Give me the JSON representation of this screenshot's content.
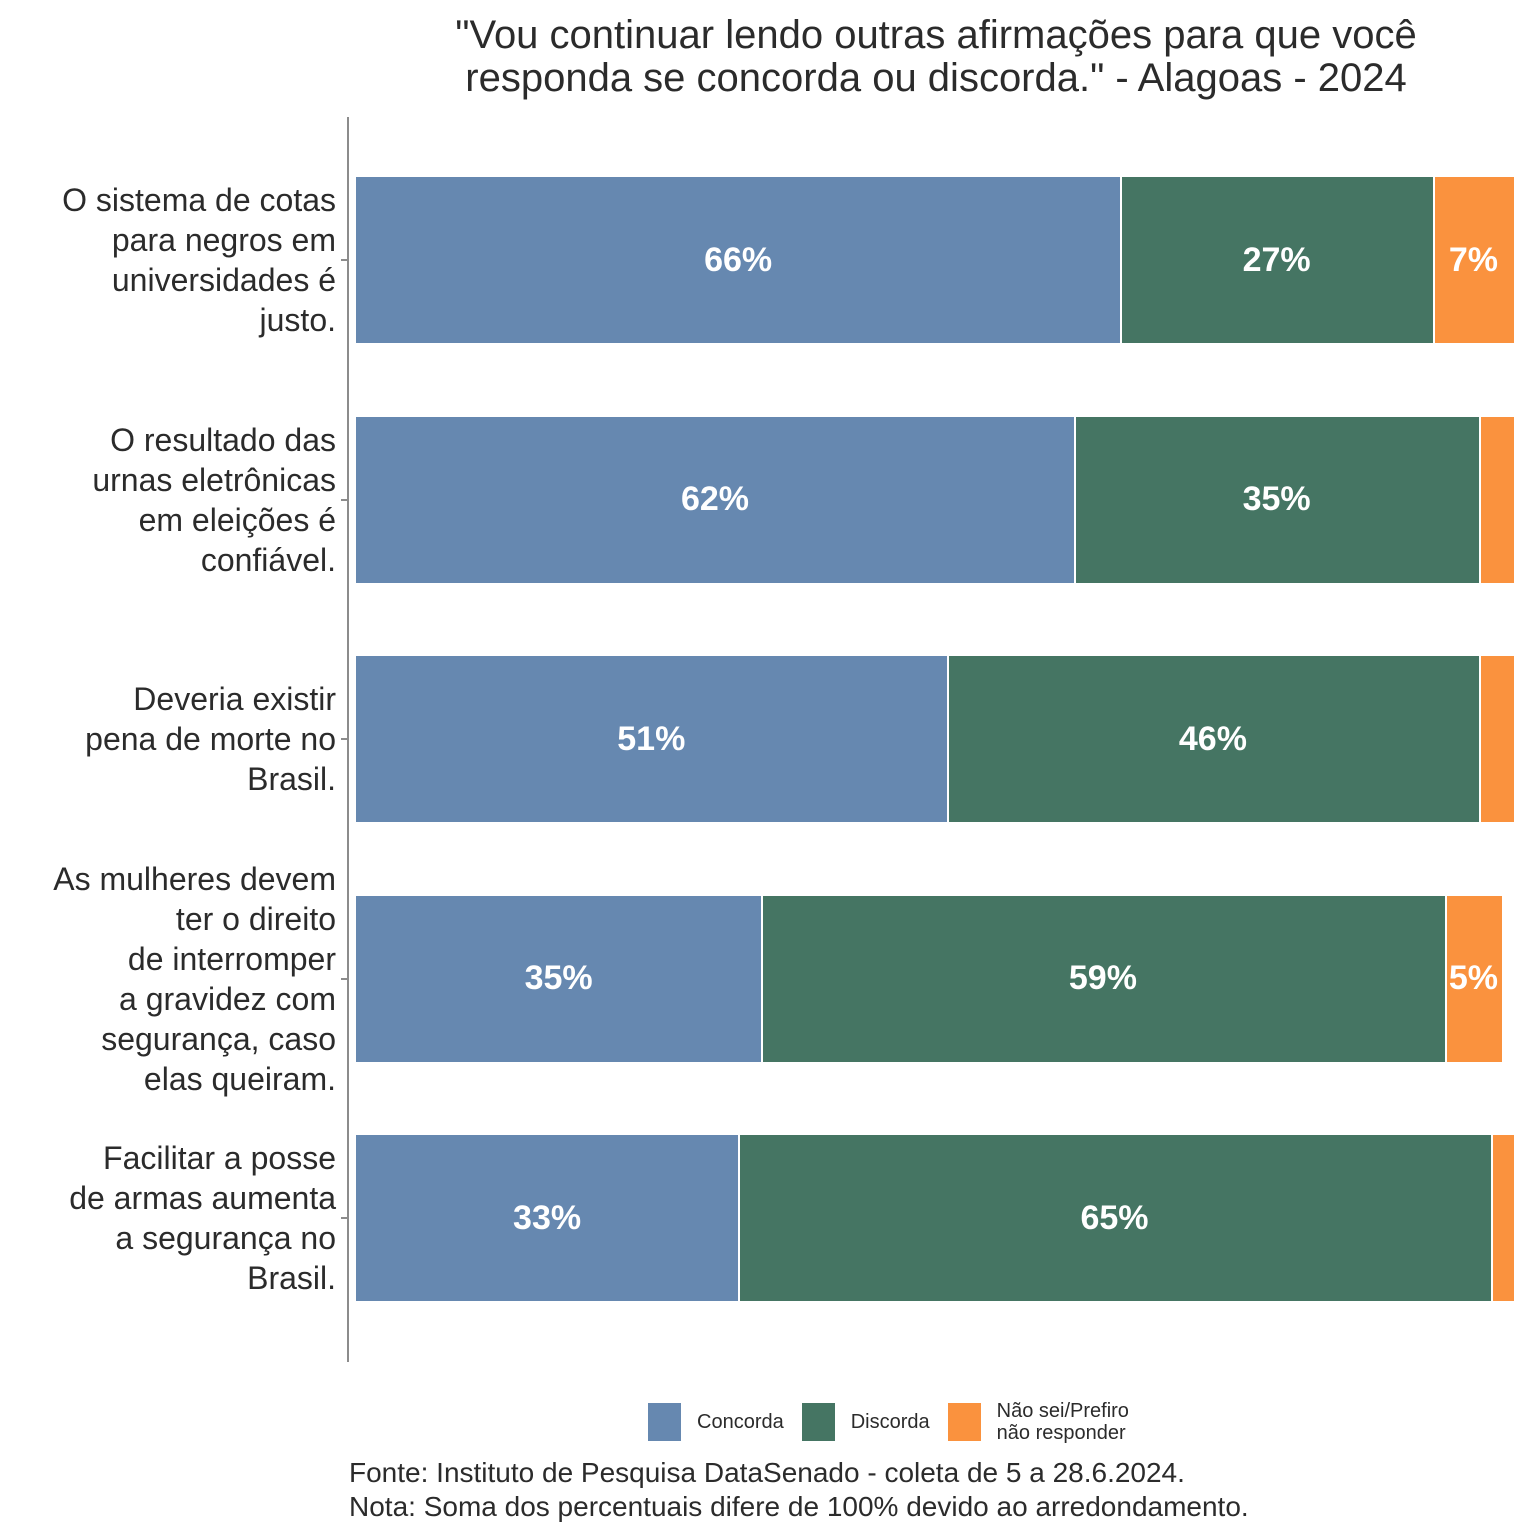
{
  "chart_data": {
    "type": "bar",
    "orientation": "horizontal",
    "stacked": true,
    "title_lines": [
      "\"Vou continuar lendo outras afirmações para que você",
      "responda se concorda ou discorda.\" - Alagoas - 2024"
    ],
    "categories": [
      [
        "O sistema de cotas",
        "para negros em",
        "universidades é",
        "justo."
      ],
      [
        "O resultado das",
        "urnas eletrônicas",
        "em eleições é",
        "confiável."
      ],
      [
        "Deveria existir",
        "pena de morte no",
        "Brasil."
      ],
      [
        "As mulheres devem",
        "ter o direito",
        "de interromper",
        "a gravidez com",
        "segurança, caso",
        "elas queiram."
      ],
      [
        "Facilitar a posse",
        "de armas aumenta",
        "a segurança no",
        "Brasil."
      ]
    ],
    "series": [
      {
        "name": "Concorda",
        "color": "#6688B0",
        "values": [
          66,
          62,
          51,
          35,
          33
        ],
        "labels": [
          "66%",
          "62%",
          "51%",
          "35%",
          "33%"
        ]
      },
      {
        "name": "Discorda",
        "color": "#457563",
        "values": [
          27,
          35,
          46,
          59,
          65
        ],
        "labels": [
          "27%",
          "35%",
          "46%",
          "59%",
          "65%"
        ]
      },
      {
        "name": "Não sei/Prefiro não responder",
        "color": "#FA923E",
        "values": [
          7,
          3,
          3,
          5,
          2
        ],
        "labels": [
          "7%",
          "",
          "",
          "5%",
          ""
        ]
      }
    ],
    "xlim": [
      0,
      100
    ],
    "xlabel": "",
    "ylabel": "",
    "grid": false,
    "legend_position": "bottom",
    "legend": [
      {
        "label_lines": [
          "Concorda"
        ],
        "color": "#6688B0"
      },
      {
        "label_lines": [
          "Discorda"
        ],
        "color": "#457563"
      },
      {
        "label_lines": [
          "Não sei/Prefiro",
          "não responder"
        ],
        "color": "#FA923E"
      }
    ]
  },
  "footer": {
    "source": "Fonte: Instituto de Pesquisa DataSenado - coleta de 5 a 28.6.2024.",
    "note": "Nota: Soma dos percentuais difere de 100% devido ao arredondamento."
  }
}
